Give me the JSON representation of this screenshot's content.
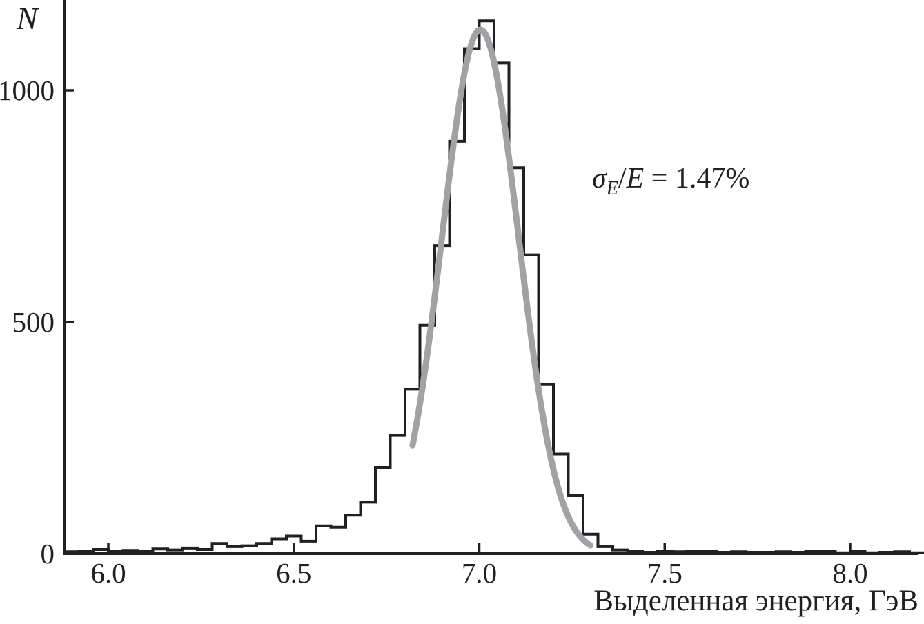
{
  "figure": {
    "y_axis_letter": "N",
    "x_axis_label": "Выделенная энергия, ГэВ",
    "annotation": {
      "sigma": "σ",
      "sub": "E",
      "slash": "/",
      "e": "E",
      "equals": " = 1.47%"
    }
  },
  "colors": {
    "background": "#ffffff",
    "axis": "#231f20",
    "histogram": "#231f20",
    "fit_curve": "#a0a2a5",
    "text": "#231f20"
  },
  "chart_data": {
    "type": "bar",
    "subtype": "step-histogram",
    "title": "",
    "xlabel": "Выделенная энергия, ГэВ",
    "ylabel": "N",
    "annotation": "σ_E/E = 1.47%",
    "grid": false,
    "legend": null,
    "xlim": [
      5.88,
      8.19
    ],
    "ylim": [
      0,
      1195
    ],
    "x_ticks": [
      {
        "value": 6.0,
        "label": "6.0"
      },
      {
        "value": 6.5,
        "label": "6.5"
      },
      {
        "value": 7.0,
        "label": "7.0"
      },
      {
        "value": 7.5,
        "label": "7.5"
      },
      {
        "value": 8.0,
        "label": "8.0"
      }
    ],
    "y_ticks": [
      {
        "value": 0,
        "label": "0"
      },
      {
        "value": 500,
        "label": "500"
      },
      {
        "value": 1000,
        "label": "1000"
      }
    ],
    "histogram": {
      "bin_start": 5.88,
      "bin_width": 0.04,
      "counts": [
        4,
        6,
        9,
        5,
        7,
        6,
        10,
        8,
        12,
        9,
        22,
        15,
        17,
        22,
        32,
        38,
        27,
        60,
        57,
        83,
        111,
        186,
        255,
        355,
        493,
        665,
        890,
        1090,
        1150,
        1059,
        833,
        645,
        365,
        215,
        125,
        42,
        15,
        8,
        6,
        3,
        5,
        4,
        6,
        5,
        3,
        4,
        3,
        3,
        4,
        3,
        6,
        5,
        2,
        5,
        2,
        3,
        4,
        2
      ]
    },
    "fit": {
      "type": "gaussian",
      "amplitude": 1131,
      "mean": 7.003,
      "sigma": 0.103,
      "x_start": 6.82,
      "x_end": 7.3
    }
  }
}
